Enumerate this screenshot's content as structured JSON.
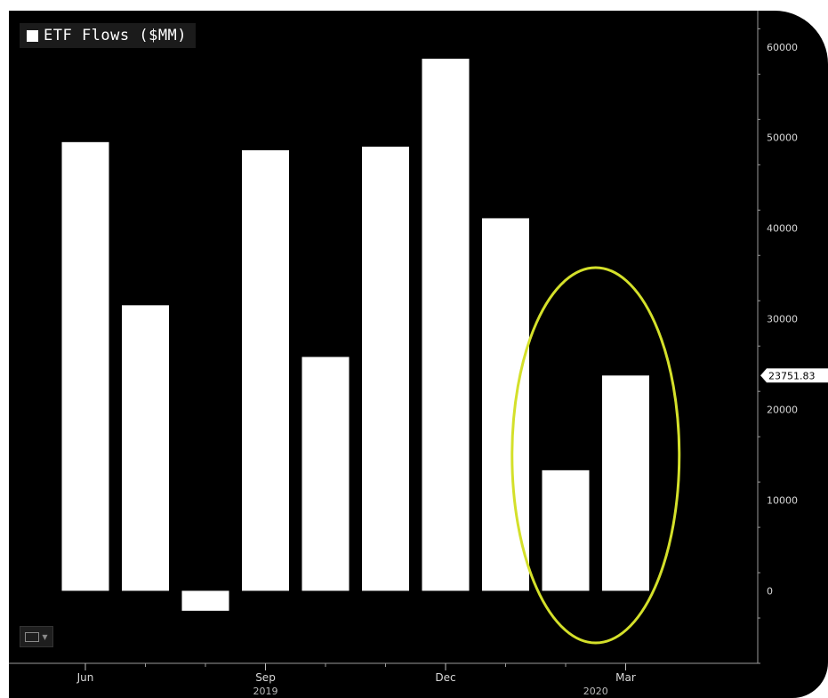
{
  "chart_data": {
    "type": "bar",
    "title": "ETF Flows ($MM)",
    "series": [
      {
        "name": "ETF Flows ($MM)",
        "values": [
          49500,
          31500,
          -2200,
          48600,
          25800,
          49000,
          58700,
          41100,
          13300,
          23751.83
        ]
      }
    ],
    "ylim": [
      -8000,
      64000
    ],
    "y_ticks": [
      0,
      10000,
      20000,
      30000,
      40000,
      50000,
      60000
    ],
    "x_tick_labels": [
      {
        "label": "Jun",
        "bar_index": 0
      },
      {
        "label": "Sep",
        "bar_index": 3
      },
      {
        "label": "Dec",
        "bar_index": 6
      },
      {
        "label": "Mar",
        "bar_index": 9
      }
    ],
    "year_labels": [
      {
        "label": "2019",
        "bar_index": 3
      },
      {
        "label": "2020",
        "bar_index": 8.5
      }
    ],
    "last_value_label": "23751.83",
    "highlight": {
      "shape": "ellipse",
      "color": "#d4e02a",
      "bar_indices": [
        8,
        9
      ]
    },
    "bar_color": "#ffffff",
    "background": "#000000",
    "legend_position": "top-left",
    "grid": false
  },
  "legend": {
    "label": "ETF Flows ($MM)"
  }
}
